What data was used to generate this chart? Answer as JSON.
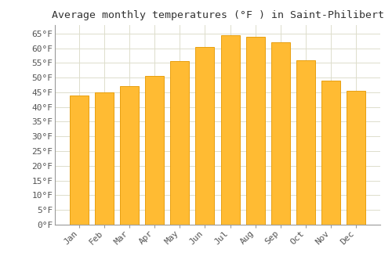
{
  "title": "Average monthly temperatures (°F ) in Saint-Philibert",
  "months": [
    "Jan",
    "Feb",
    "Mar",
    "Apr",
    "May",
    "Jun",
    "Jul",
    "Aug",
    "Sep",
    "Oct",
    "Nov",
    "Dec"
  ],
  "values": [
    44,
    45,
    47,
    50.5,
    55.5,
    60.5,
    64.5,
    64,
    62,
    56,
    49,
    45.5
  ],
  "bar_color": "#FFBB33",
  "bar_edge_color": "#E8A010",
  "background_color": "#FFFFFF",
  "grid_color": "#DDDDCC",
  "title_fontsize": 9.5,
  "tick_fontsize": 8,
  "ylim": [
    0,
    68
  ],
  "yticks": [
    0,
    5,
    10,
    15,
    20,
    25,
    30,
    35,
    40,
    45,
    50,
    55,
    60,
    65
  ]
}
